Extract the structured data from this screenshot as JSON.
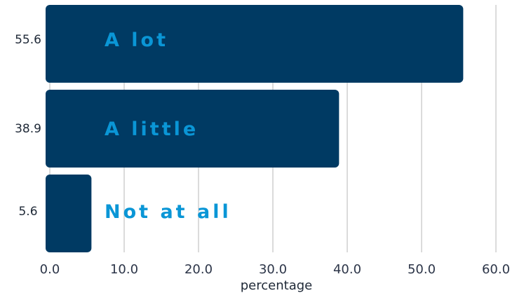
{
  "chart_data": {
    "type": "bar",
    "orientation": "horizontal",
    "categories": [
      "A lot",
      "A little",
      "Not at all"
    ],
    "values": [
      55.6,
      38.9,
      5.6
    ],
    "value_labels": [
      "55.6",
      "38.9",
      "5.6"
    ],
    "xlabel": "percentage",
    "ylabel": "",
    "title": "",
    "xlim": [
      0,
      60
    ],
    "xticks": [
      "0.0",
      "10.0",
      "20.0",
      "30.0",
      "40.0",
      "50.0",
      "60.0"
    ],
    "grid": "vertical",
    "legend": "none",
    "colors": {
      "bar": "#003a63",
      "category_text": "#0a96d6",
      "grid": "#cfcfcf",
      "tick_text": "#2c3548"
    }
  }
}
